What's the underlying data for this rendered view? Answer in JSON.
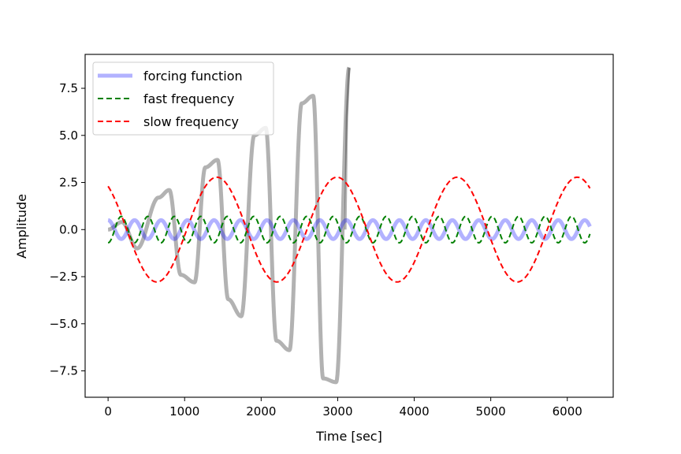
{
  "chart_data": {
    "type": "line",
    "xlabel": "Time [sec]",
    "ylabel": "Amplitude",
    "xlim": [
      -300,
      6600
    ],
    "ylim": [
      -8.9,
      9.3
    ],
    "xticks": [
      0,
      1000,
      2000,
      3000,
      4000,
      5000,
      6000
    ],
    "xtick_labels": [
      "0",
      "1000",
      "2000",
      "3000",
      "4000",
      "5000",
      "6000"
    ],
    "yticks": [
      -7.5,
      -5.0,
      -2.5,
      0.0,
      2.5,
      5.0,
      7.5
    ],
    "ytick_labels": [
      "−7.5",
      "−5.0",
      "−2.5",
      "0.0",
      "2.5",
      "5.0",
      "7.5"
    ],
    "grid": false,
    "legend_position": "top-left",
    "series": [
      {
        "name": "forcing function",
        "color": "#0000ff",
        "opacity": 0.3,
        "style": "solid",
        "in_legend": true,
        "x_range": [
          0,
          6300
        ],
        "amplitude": 0.5,
        "period": 346
      },
      {
        "name": "fast frequency",
        "color": "#008000",
        "style": "dashed",
        "in_legend": true,
        "x_range": [
          0,
          6300
        ],
        "amplitude": 0.7,
        "period": 346,
        "phase_note": "starts at -0.7"
      },
      {
        "name": "slow frequency",
        "color": "#ff0000",
        "style": "dashed",
        "in_legend": true,
        "x_range": [
          0,
          6300
        ],
        "amplitude": 2.78,
        "period": 1570,
        "start_value": 2.3
      },
      {
        "name": "",
        "color": "#000000",
        "opacity": 0.3,
        "style": "solid",
        "in_legend": false,
        "x_range": [
          0,
          3150
        ],
        "envelope": "growing",
        "peak_points": [
          {
            "x": 180,
            "y": 0.4
          },
          {
            "x": 380,
            "y": -1.0
          },
          {
            "x": 660,
            "y": 1.7
          },
          {
            "x": 800,
            "y": 2.1
          },
          {
            "x": 950,
            "y": -2.4
          },
          {
            "x": 1130,
            "y": -2.8
          },
          {
            "x": 1270,
            "y": 3.3
          },
          {
            "x": 1430,
            "y": 3.7
          },
          {
            "x": 1570,
            "y": -3.7
          },
          {
            "x": 1740,
            "y": -4.6
          },
          {
            "x": 1910,
            "y": 5.0
          },
          {
            "x": 2060,
            "y": 5.4
          },
          {
            "x": 2200,
            "y": -5.9
          },
          {
            "x": 2370,
            "y": -6.4
          },
          {
            "x": 2530,
            "y": 6.7
          },
          {
            "x": 2680,
            "y": 7.1
          },
          {
            "x": 2810,
            "y": -7.9
          },
          {
            "x": 2980,
            "y": -8.1
          },
          {
            "x": 3150,
            "y": 8.6
          }
        ]
      }
    ]
  }
}
